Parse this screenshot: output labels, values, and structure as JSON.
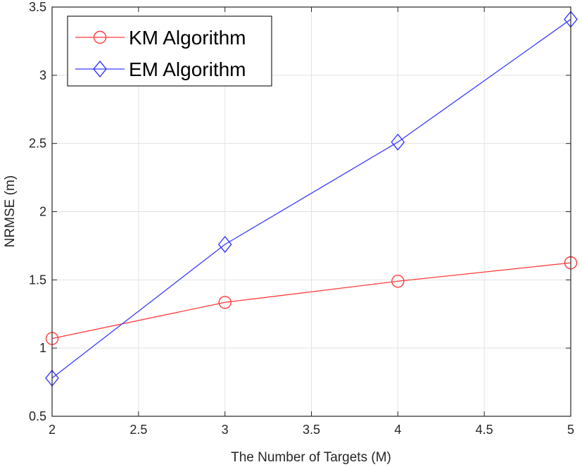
{
  "chart_data": {
    "type": "line",
    "title": "",
    "xlabel": "The Number of Targets (M)",
    "ylabel": "NRMSE (m)",
    "xlim": [
      2,
      5
    ],
    "ylim": [
      0.5,
      3.5
    ],
    "grid": true,
    "legend_position": "top-left",
    "x_ticks": [
      "2",
      "2.5",
      "3",
      "3.5",
      "4",
      "4.5",
      "5"
    ],
    "y_ticks": [
      "0.5",
      "1",
      "1.5",
      "2",
      "2.5",
      "3",
      "3.5"
    ],
    "x": [
      2,
      3,
      4,
      5
    ],
    "series": [
      {
        "name": "KM Algorithm",
        "color": "#ff3b3b",
        "marker": "circle",
        "values": [
          1.07,
          1.335,
          1.49,
          1.625
        ]
      },
      {
        "name": "EM Algorithm",
        "color": "#3b3bff",
        "marker": "diamond",
        "values": [
          0.78,
          1.76,
          2.51,
          3.41
        ]
      }
    ]
  }
}
